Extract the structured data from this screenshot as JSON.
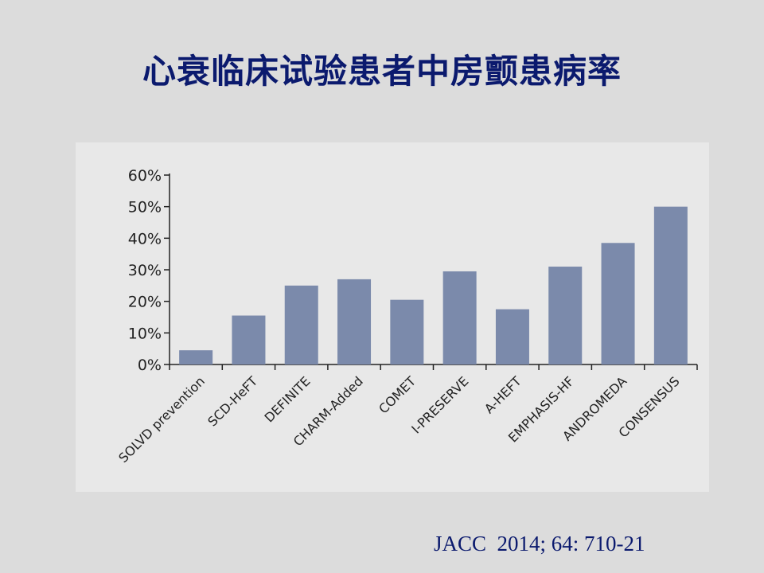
{
  "slide": {
    "title": "心衰临床试验患者中房颤患病率",
    "citation": "JACC  2014; 64: 710-21"
  },
  "colors": {
    "title": "#0b1a6e",
    "bar": "#7b8aab",
    "axis": "#222222",
    "panel": "#e8e8e8",
    "background": "#dcdcdc"
  },
  "chart_data": {
    "type": "bar",
    "categories": [
      "SOLVD prevention",
      "SCD-HeFT",
      "DEFINITE",
      "CHARM-Added",
      "COMET",
      "I-PRESERVE",
      "A-HEFT",
      "EMPHASIS-HF",
      "ANDROMEDA",
      "CONSENSUS"
    ],
    "values": [
      4.5,
      15.5,
      25,
      27,
      20.5,
      29.5,
      17.5,
      31,
      38.5,
      50
    ],
    "unit": "%",
    "ylim": [
      0,
      60
    ],
    "yticks": [
      0,
      10,
      20,
      30,
      40,
      50,
      60
    ],
    "ytick_labels": [
      "0%",
      "10%",
      "20%",
      "30%",
      "40%",
      "50%",
      "60%"
    ],
    "grid": false,
    "legend": "none",
    "xlabel": "",
    "ylabel": ""
  }
}
